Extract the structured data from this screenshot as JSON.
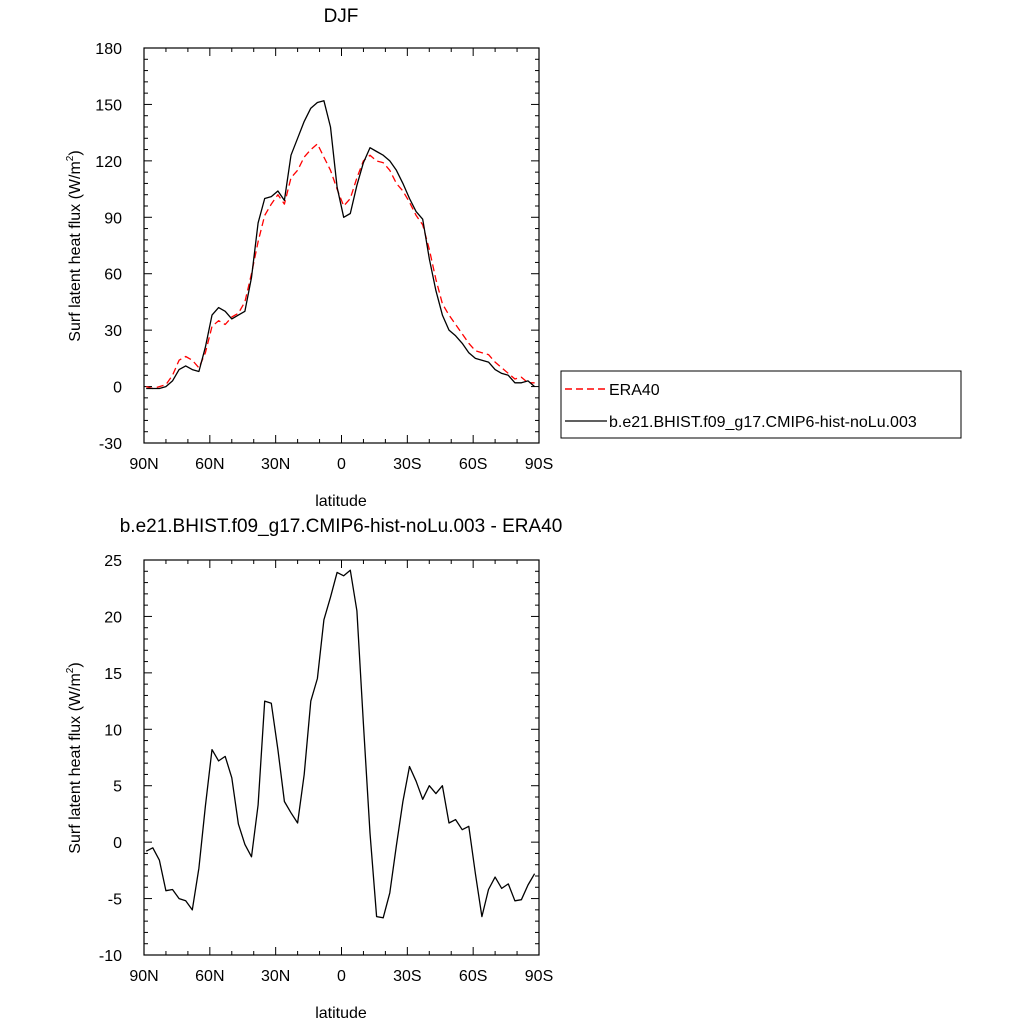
{
  "chart_data": [
    {
      "type": "line",
      "title": "DJF",
      "xlabel": "latitude",
      "ylabel": "Surf latent heat flux (W/m",
      "ylabel_sup": "2",
      "ylabel_close": ")",
      "x_unit": "degrees latitude (positive = N, negative = S)",
      "xlim": [
        90,
        -90
      ],
      "ylim": [
        -30,
        180
      ],
      "y_ticks": [
        -30,
        0,
        30,
        60,
        90,
        120,
        150,
        180
      ],
      "x_ticks": [
        90,
        60,
        30,
        0,
        -30,
        -60,
        -90
      ],
      "x_tick_labels": [
        "90N",
        "60N",
        "30N",
        "0",
        "30S",
        "60S",
        "90S"
      ],
      "legend_position": "right",
      "series": [
        {
          "name": "ERA40",
          "color": "#ff0000",
          "dash": "dashed",
          "x": [
            89,
            86,
            83,
            80,
            77,
            74,
            71,
            68,
            65,
            62,
            59,
            56,
            53,
            50,
            47,
            44,
            41,
            38,
            35,
            32,
            29,
            26,
            23,
            20,
            17,
            14,
            11,
            8,
            5,
            2,
            -1,
            -4,
            -7,
            -10,
            -13,
            -16,
            -19,
            -22,
            -25,
            -28,
            -31,
            -34,
            -37,
            -40,
            -43,
            -46,
            -49,
            -52,
            -55,
            -58,
            -61,
            -64,
            -67,
            -70,
            -73,
            -76,
            -79,
            -82,
            -85,
            -88
          ],
          "y": [
            0,
            -1,
            0,
            1,
            6,
            14,
            16,
            14,
            10,
            18,
            32,
            35,
            33,
            37,
            39,
            45,
            60,
            77,
            91,
            97,
            102,
            97,
            111,
            115,
            122,
            126,
            129,
            122,
            115,
            105,
            96,
            100,
            111,
            120,
            123,
            120,
            119,
            115,
            108,
            104,
            98,
            91,
            86,
            73,
            57,
            44,
            38,
            33,
            28,
            23,
            19,
            18,
            17,
            13,
            10,
            7,
            4,
            5,
            2,
            2
          ]
        },
        {
          "name": "b.e21.BHIST.f09_g17.CMIP6-hist-noLu.003",
          "color": "#000000",
          "dash": "solid",
          "x": [
            89,
            86,
            83,
            80,
            77,
            74,
            71,
            68,
            65,
            62,
            59,
            56,
            53,
            50,
            47,
            44,
            41,
            38,
            35,
            32,
            29,
            26,
            23,
            20,
            17,
            14,
            11,
            8,
            5,
            2,
            -1,
            -4,
            -7,
            -10,
            -13,
            -16,
            -19,
            -22,
            -25,
            -28,
            -31,
            -34,
            -37,
            -40,
            -43,
            -46,
            -49,
            -52,
            -55,
            -58,
            -61,
            -64,
            -67,
            -70,
            -73,
            -76,
            -79,
            -82,
            -85,
            -88
          ],
          "y": [
            -1,
            -1,
            -1,
            0,
            3,
            9,
            11,
            9,
            8,
            21,
            38,
            42,
            40,
            36,
            38,
            40,
            58,
            87,
            100,
            101,
            104,
            99,
            123,
            132,
            141,
            148,
            151,
            152,
            138,
            106,
            90,
            92,
            107,
            119,
            127,
            125,
            123,
            120,
            115,
            108,
            100,
            93,
            89,
            68,
            51,
            38,
            30,
            27,
            23,
            18,
            15,
            14,
            13,
            9,
            7,
            6,
            2,
            2,
            3,
            0
          ]
        }
      ]
    },
    {
      "type": "line",
      "title": "b.e21.BHIST.f09_g17.CMIP6-hist-noLu.003 - ERA40",
      "xlabel": "latitude",
      "ylabel": "Surf latent heat flux (W/m",
      "ylabel_sup": "2",
      "ylabel_close": ")",
      "x_unit": "degrees latitude (positive = N, negative = S)",
      "xlim": [
        90,
        -90
      ],
      "ylim": [
        -10,
        25
      ],
      "y_ticks": [
        -10,
        -5,
        0,
        5,
        10,
        15,
        20,
        25
      ],
      "x_ticks": [
        90,
        60,
        30,
        0,
        -30,
        -60,
        -90
      ],
      "x_tick_labels": [
        "90N",
        "60N",
        "30N",
        "0",
        "30S",
        "60S",
        "90S"
      ],
      "series": [
        {
          "color": "#000000",
          "dash": "solid",
          "x": [
            89,
            86,
            83,
            80,
            77,
            74,
            71,
            68,
            65,
            62,
            59,
            56,
            53,
            50,
            47,
            44,
            41,
            38,
            35,
            32,
            29,
            26,
            23,
            20,
            17,
            14,
            11,
            8,
            5,
            2,
            -1,
            -4,
            -7,
            -10,
            -13,
            -16,
            -19,
            -22,
            -25,
            -28,
            -31,
            -34,
            -37,
            -40,
            -43,
            -46,
            -49,
            -52,
            -55,
            -58,
            -61,
            -64,
            -67,
            -70,
            -73,
            -76,
            -79,
            -82,
            -85,
            -88
          ],
          "y": [
            -0.8,
            -0.5,
            -1.6,
            -4.3,
            -4.2,
            -5.0,
            -5.2,
            -6.0,
            -2.3,
            3.2,
            8.2,
            7.2,
            7.6,
            5.7,
            1.6,
            -0.2,
            -1.3,
            3.3,
            12.5,
            12.3,
            8.2,
            3.6,
            2.6,
            1.7,
            6.0,
            12.5,
            14.5,
            19.7,
            21.7,
            23.9,
            23.6,
            24.1,
            20.5,
            10.5,
            0.8,
            -6.6,
            -6.7,
            -4.5,
            -0.3,
            3.6,
            6.7,
            5.4,
            3.8,
            5.0,
            4.3,
            5.0,
            1.7,
            2.0,
            1.1,
            1.4,
            -2.8,
            -6.6,
            -4.2,
            -3.1,
            -4.1,
            -3.7,
            -5.2,
            -5.1,
            -3.8,
            -2.8
          ]
        }
      ]
    }
  ]
}
